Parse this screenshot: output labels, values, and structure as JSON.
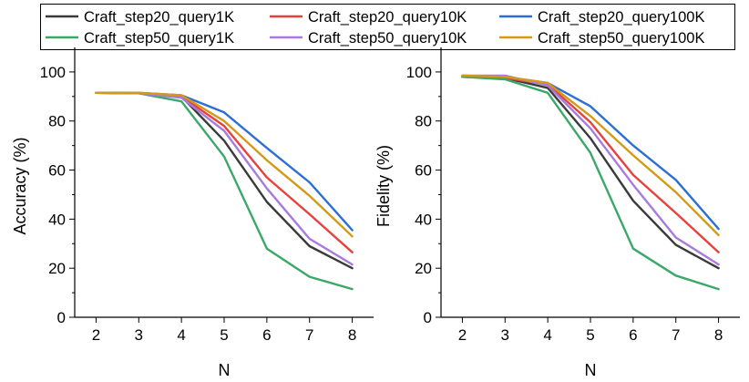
{
  "chart_data": [
    {
      "type": "line",
      "title": "",
      "xlabel": "N",
      "ylabel": "Accuracy (%)",
      "x": [
        2,
        3,
        4,
        5,
        6,
        7,
        8
      ],
      "xlim": [
        1.5,
        8.5
      ],
      "ylim": [
        0,
        110
      ],
      "xticks": [
        "2",
        "3",
        "4",
        "5",
        "6",
        "7",
        "8"
      ],
      "yticks": [
        "0",
        "20",
        "40",
        "60",
        "80",
        "100"
      ],
      "grid": false,
      "series": [
        {
          "name": "Craft_step20_query1K",
          "color": "#3a3a3a",
          "values": [
            91.5,
            91.3,
            90.0,
            72.0,
            47.0,
            29.0,
            20.0
          ]
        },
        {
          "name": "Craft_step20_query10K",
          "color": "#e8413b",
          "values": [
            91.5,
            91.3,
            90.0,
            78.0,
            57.0,
            42.0,
            26.5
          ]
        },
        {
          "name": "Craft_step20_query100K",
          "color": "#2a6fd6",
          "values": [
            91.5,
            91.5,
            90.5,
            83.5,
            69.0,
            55.0,
            35.5
          ]
        },
        {
          "name": "Craft_step50_query1K",
          "color": "#3aa868",
          "values": [
            91.5,
            91.3,
            88.0,
            65.5,
            28.0,
            16.5,
            11.5
          ]
        },
        {
          "name": "Craft_step50_query10K",
          "color": "#a87ae0",
          "values": [
            91.5,
            91.3,
            89.5,
            76.0,
            52.5,
            32.0,
            21.5
          ]
        },
        {
          "name": "Craft_step50_query100K",
          "color": "#d39a15",
          "values": [
            91.5,
            91.5,
            90.5,
            80.0,
            64.0,
            49.5,
            33.0
          ]
        }
      ]
    },
    {
      "type": "line",
      "title": "",
      "xlabel": "N",
      "ylabel": "Fidelity (%)",
      "x": [
        2,
        3,
        4,
        5,
        6,
        7,
        8
      ],
      "xlim": [
        1.5,
        8.5
      ],
      "ylim": [
        0,
        110
      ],
      "xticks": [
        "2",
        "3",
        "4",
        "5",
        "6",
        "7",
        "8"
      ],
      "yticks": [
        "0",
        "20",
        "40",
        "60",
        "80",
        "100"
      ],
      "grid": false,
      "series": [
        {
          "name": "Craft_step20_query1K",
          "color": "#3a3a3a",
          "values": [
            98.0,
            97.5,
            93.5,
            73.0,
            47.5,
            29.5,
            20.0
          ]
        },
        {
          "name": "Craft_step20_query10K",
          "color": "#e8413b",
          "values": [
            98.0,
            97.5,
            95.0,
            79.5,
            58.0,
            42.5,
            26.5
          ]
        },
        {
          "name": "Craft_step20_query100K",
          "color": "#2a6fd6",
          "values": [
            98.5,
            98.0,
            95.5,
            86.0,
            70.0,
            56.0,
            36.0
          ]
        },
        {
          "name": "Craft_step50_query1K",
          "color": "#3aa868",
          "values": [
            98.0,
            97.0,
            91.5,
            67.0,
            28.0,
            17.0,
            11.5
          ]
        },
        {
          "name": "Craft_step50_query10K",
          "color": "#a87ae0",
          "values": [
            98.5,
            98.5,
            94.5,
            77.0,
            54.0,
            32.5,
            21.5
          ]
        },
        {
          "name": "Craft_step50_query100K",
          "color": "#d39a15",
          "values": [
            98.5,
            98.0,
            95.5,
            82.0,
            66.0,
            51.0,
            33.5
          ]
        }
      ]
    }
  ],
  "legend": {
    "placement": "top",
    "entries": [
      {
        "label": "Craft_step20_query1K",
        "color": "#3a3a3a"
      },
      {
        "label": "Craft_step20_query10K",
        "color": "#e8413b"
      },
      {
        "label": "Craft_step20_query100K",
        "color": "#2a6fd6"
      },
      {
        "label": "Craft_step50_query1K",
        "color": "#3aa868"
      },
      {
        "label": "Craft_step50_query10K",
        "color": "#a87ae0"
      },
      {
        "label": "Craft_step50_query100K",
        "color": "#d39a15"
      }
    ]
  }
}
